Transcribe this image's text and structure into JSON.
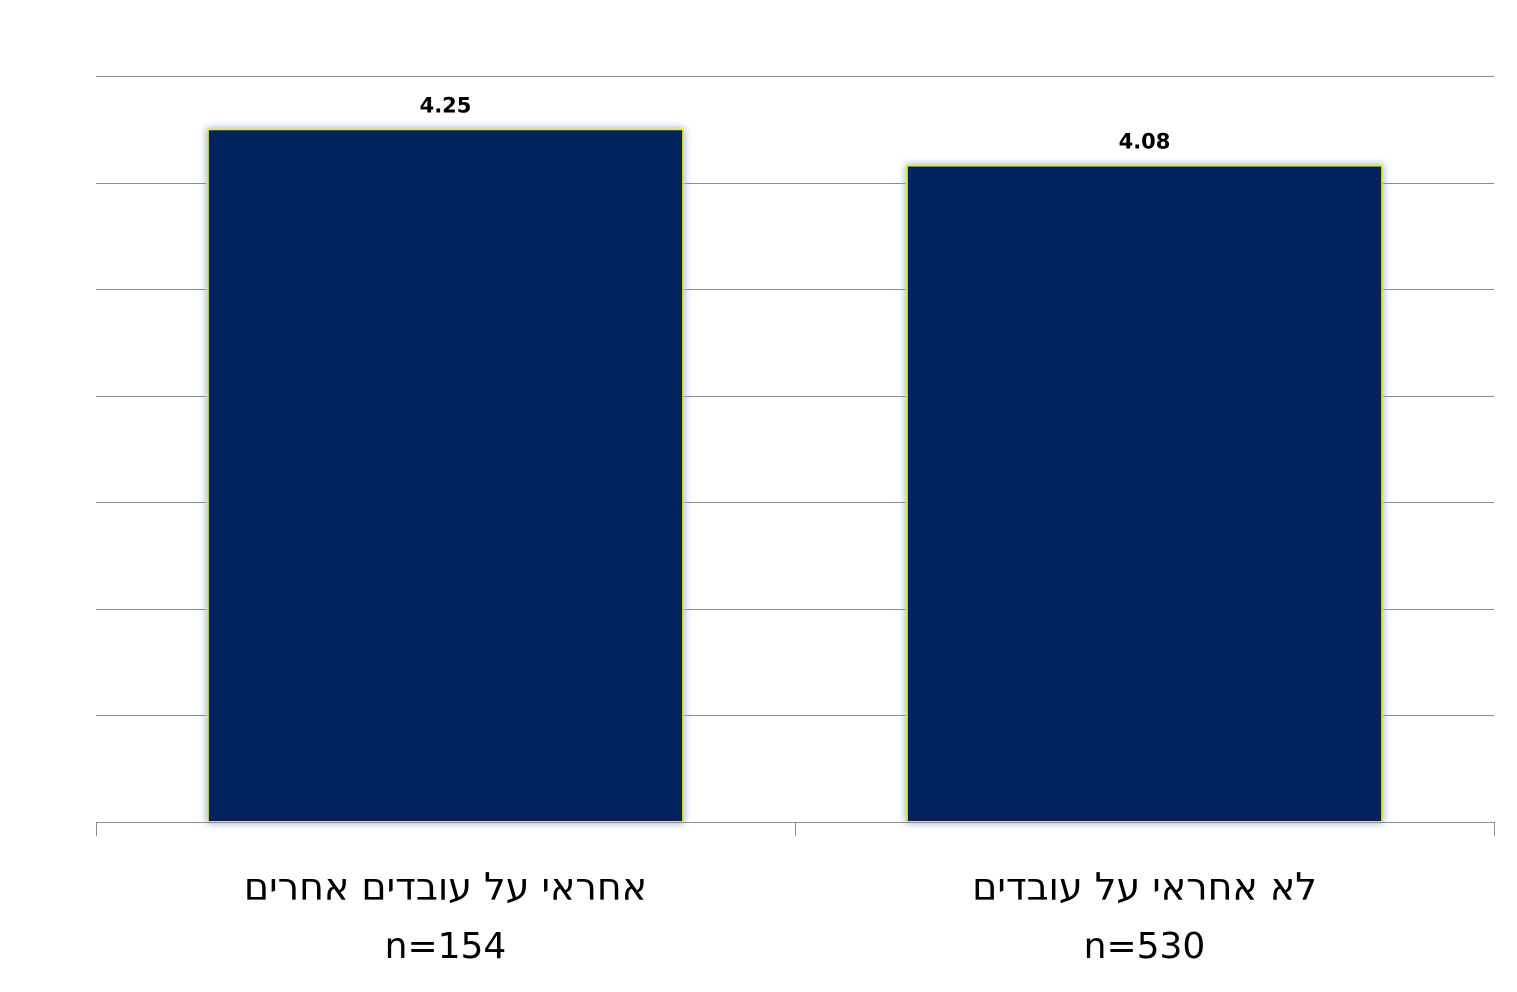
{
  "chart_data": {
    "type": "bar",
    "categories": [
      "אחראי על עובדים אחרים",
      "לא אחראי על עובדים"
    ],
    "category_sublabels": [
      "n=154",
      "n=530"
    ],
    "values": [
      4.25,
      4.08
    ],
    "data_labels": [
      "4.25",
      "4.08"
    ],
    "ylim": [
      1,
      4.5
    ],
    "y_gridline_step": 0.5,
    "grid": true,
    "legend": "none",
    "title": "",
    "xlabel": "",
    "ylabel": ""
  },
  "colors": {
    "bar_fill": "#00205f",
    "bar_outline": "#e8e83a",
    "bar_glow": "#8aa6e0",
    "gridline": "#8c8c8c"
  }
}
